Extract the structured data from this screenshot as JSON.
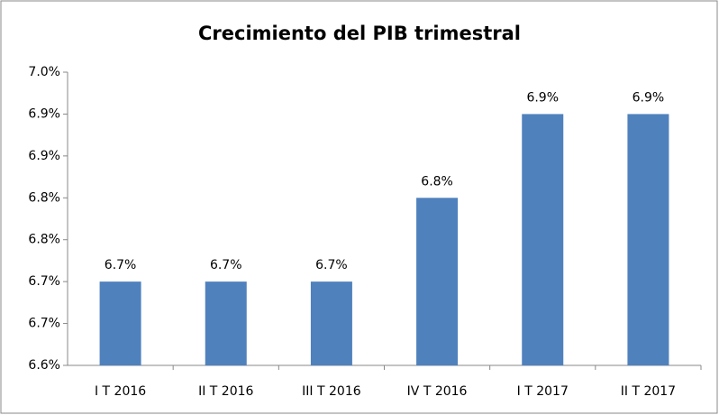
{
  "chart_data": {
    "type": "bar",
    "title": "Crecimiento del PIB trimestral",
    "categories": [
      "I T 2016",
      "II T 2016",
      "III T 2016",
      "IV T 2016",
      "I T 2017",
      "II T 2017"
    ],
    "values": [
      6.7,
      6.7,
      6.7,
      6.8,
      6.9,
      6.9
    ],
    "value_labels": [
      "6.7%",
      "6.7%",
      "6.7%",
      "6.8%",
      "6.9%",
      "6.9%"
    ],
    "color": "#4f81bd",
    "ylim": [
      6.6,
      6.95
    ],
    "yticks": [
      {
        "value": 6.6,
        "label": "6.6%"
      },
      {
        "value": 6.65,
        "label": "6.7%"
      },
      {
        "value": 6.7,
        "label": "6.7%"
      },
      {
        "value": 6.75,
        "label": "6.8%"
      },
      {
        "value": 6.8,
        "label": "6.8%"
      },
      {
        "value": 6.85,
        "label": "6.9%"
      },
      {
        "value": 6.9,
        "label": "6.9%"
      },
      {
        "value": 6.95,
        "label": "7.0%"
      }
    ],
    "grid": false
  }
}
